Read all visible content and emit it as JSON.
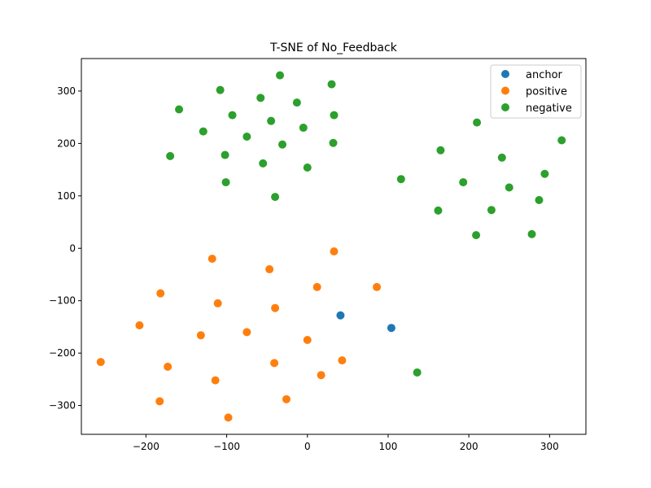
{
  "chart_data": {
    "type": "scatter",
    "title": "T-SNE of No_Feedback",
    "xlabel": "",
    "ylabel": "",
    "xlim": [
      -280,
      345
    ],
    "ylim": [
      -355,
      362
    ],
    "xticks": [
      -200,
      -100,
      0,
      100,
      200,
      300
    ],
    "yticks": [
      -300,
      -200,
      -100,
      0,
      100,
      200,
      300
    ],
    "grid": false,
    "legend_position": "top-right",
    "series": [
      {
        "name": "anchor",
        "color": "#1f77b4",
        "points": [
          [
            41,
            -128
          ],
          [
            104,
            -152
          ]
        ]
      },
      {
        "name": "positive",
        "color": "#ff7f0e",
        "points": [
          [
            -256,
            -217
          ],
          [
            -182,
            -86
          ],
          [
            -208,
            -147
          ],
          [
            -173,
            -226
          ],
          [
            -183,
            -292
          ],
          [
            -118,
            -20
          ],
          [
            -111,
            -105
          ],
          [
            -132,
            -166
          ],
          [
            -114,
            -252
          ],
          [
            -98,
            -323
          ],
          [
            -75,
            -160
          ],
          [
            -47,
            -40
          ],
          [
            -40,
            -114
          ],
          [
            -41,
            -219
          ],
          [
            -26,
            -288
          ],
          [
            0,
            -175
          ],
          [
            12,
            -74
          ],
          [
            17,
            -242
          ],
          [
            33,
            -6
          ],
          [
            43,
            -214
          ],
          [
            86,
            -74
          ]
        ]
      },
      {
        "name": "negative",
        "color": "#2ca02c",
        "points": [
          [
            -108,
            302
          ],
          [
            -34,
            330
          ],
          [
            30,
            313
          ],
          [
            -159,
            265
          ],
          [
            -93,
            254
          ],
          [
            -58,
            287
          ],
          [
            -13,
            278
          ],
          [
            33,
            254
          ],
          [
            -129,
            223
          ],
          [
            -75,
            213
          ],
          [
            -45,
            243
          ],
          [
            -5,
            230
          ],
          [
            -31,
            198
          ],
          [
            32,
            201
          ],
          [
            -170,
            176
          ],
          [
            -102,
            178
          ],
          [
            -55,
            162
          ],
          [
            0,
            154
          ],
          [
            -101,
            126
          ],
          [
            -40,
            98
          ],
          [
            116,
            132
          ],
          [
            165,
            187
          ],
          [
            210,
            240
          ],
          [
            162,
            72
          ],
          [
            193,
            126
          ],
          [
            241,
            173
          ],
          [
            250,
            116
          ],
          [
            228,
            73
          ],
          [
            209,
            25
          ],
          [
            287,
            92
          ],
          [
            294,
            142
          ],
          [
            315,
            206
          ],
          [
            278,
            27
          ],
          [
            136,
            -237
          ]
        ]
      }
    ]
  }
}
